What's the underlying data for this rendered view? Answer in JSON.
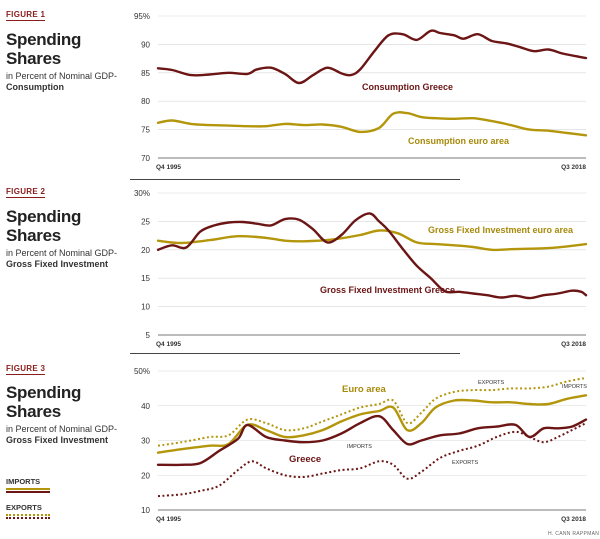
{
  "figures": [
    {
      "label": "FIGURE 1",
      "title": "Spending Shares",
      "subtitle_pre": "in Percent of Nominal GDP-",
      "subtitle_bold": "Consumption"
    },
    {
      "label": "FIGURE 2",
      "title": "Spending Shares",
      "subtitle_pre": "in Percent of Nominal GDP-",
      "subtitle_bold": "Gross Fixed Investment"
    },
    {
      "label": "FIGURE 3",
      "title": "Spending Shares",
      "subtitle_pre": "in Percent of Nominal GDP-",
      "subtitle_bold": "Gross Fixed Investment"
    }
  ],
  "legend": {
    "imports": "IMPORTS",
    "exports": "EXPORTS"
  },
  "credit": "H. CANN RAPPMAN",
  "colors": {
    "greece": "#6b1515",
    "euro": "#b3960c",
    "text_dark_red": "#6b1515",
    "text_gold": "#a88a0a"
  },
  "chart_data": [
    {
      "type": "line",
      "x_start_label": "Q4 1995",
      "x_end_label": "Q3 2018",
      "x_range": [
        1995.75,
        2018.5
      ],
      "ylim": [
        70,
        95
      ],
      "y_ticks": [
        "95%",
        "90",
        "85",
        "80",
        "75",
        "70"
      ],
      "y_tick_values": [
        95,
        90,
        85,
        80,
        75,
        70
      ],
      "series": [
        {
          "name": "Consumption Greece",
          "x": [
            1995.75,
            1996.5,
            1997.5,
            1998.5,
            1999.5,
            2000.5,
            2001,
            2001.75,
            2002.5,
            2003.25,
            2004,
            2004.75,
            2005.5,
            2006,
            2006.5,
            2007.25,
            2008,
            2008.75,
            2009.5,
            2010.25,
            2010.75,
            2011.5,
            2012,
            2012.75,
            2013.5,
            2014.25,
            2015,
            2015.75,
            2016.5,
            2017.25,
            2018,
            2018.5
          ],
          "values": [
            85.8,
            85.5,
            84.6,
            84.7,
            85.0,
            84.8,
            85.6,
            85.9,
            84.8,
            83.2,
            84.6,
            85.9,
            84.9,
            84.6,
            85.6,
            88.8,
            91.6,
            91.8,
            90.8,
            92.4,
            92.0,
            91.6,
            91.0,
            91.8,
            90.6,
            90.2,
            89.5,
            88.8,
            89.1,
            88.4,
            87.9,
            87.6
          ]
        },
        {
          "name": "Consumption euro area",
          "x": [
            1995.75,
            1996.5,
            1997.5,
            1998.5,
            1999.5,
            2000.5,
            2001.5,
            2002.5,
            2003.5,
            2004.5,
            2005.5,
            2006.5,
            2007.5,
            2008.25,
            2009,
            2009.75,
            2010.5,
            2011.5,
            2012.5,
            2013.5,
            2014.5,
            2015.5,
            2016.5,
            2017.5,
            2018.5
          ],
          "values": [
            76.2,
            76.6,
            76.0,
            75.8,
            75.7,
            75.6,
            75.6,
            76.0,
            75.8,
            75.9,
            75.5,
            74.6,
            75.3,
            77.8,
            77.9,
            77.2,
            77.0,
            76.9,
            77.0,
            76.5,
            75.8,
            75.0,
            74.8,
            74.4,
            74.0
          ]
        }
      ]
    },
    {
      "type": "line",
      "x_start_label": "Q4 1995",
      "x_end_label": "Q3 2018",
      "x_range": [
        1995.75,
        2018.5
      ],
      "ylim": [
        5,
        30
      ],
      "y_ticks": [
        "30%",
        "25",
        "20",
        "15",
        "10",
        "5"
      ],
      "y_tick_values": [
        30,
        25,
        20,
        15,
        10,
        5
      ],
      "series": [
        {
          "name": "Gross Fixed Investment euro area",
          "x": [
            1995.75,
            1997,
            1998.5,
            2000,
            2001.5,
            2002.5,
            2003.5,
            2005,
            2006.5,
            2007.5,
            2008.5,
            2009.5,
            2010.5,
            2011.5,
            2012.5,
            2013.5,
            2014.5,
            2015.5,
            2016.5,
            2017.5,
            2018.5
          ],
          "values": [
            21.6,
            21.2,
            21.7,
            22.4,
            22.1,
            21.6,
            21.5,
            21.8,
            22.6,
            23.4,
            22.9,
            21.3,
            21.0,
            20.8,
            20.5,
            20.0,
            20.1,
            20.2,
            20.3,
            20.6,
            21.0
          ]
        },
        {
          "name": "Gross Fixed Investment Greece",
          "x": [
            1995.75,
            1996.5,
            1997.25,
            1998,
            1998.75,
            1999.5,
            2000.25,
            2001,
            2001.75,
            2002.5,
            2003.25,
            2004,
            2004.75,
            2005.5,
            2006.25,
            2007,
            2007.5,
            2008,
            2008.75,
            2009.5,
            2010.25,
            2011,
            2011.75,
            2012.5,
            2013.25,
            2014,
            2014.75,
            2015.5,
            2016.25,
            2017,
            2017.75,
            2018.25,
            2018.5
          ],
          "values": [
            20.0,
            20.8,
            20.4,
            23.2,
            24.3,
            24.8,
            24.9,
            24.6,
            24.3,
            25.4,
            25.3,
            23.6,
            21.3,
            22.6,
            25.2,
            26.4,
            25.0,
            23.4,
            20.2,
            17.2,
            15.0,
            12.7,
            12.6,
            12.3,
            12.0,
            11.6,
            11.9,
            11.5,
            12.0,
            12.3,
            12.8,
            12.6,
            12.0
          ]
        }
      ]
    },
    {
      "type": "line",
      "x_start_label": "Q4 1995",
      "x_end_label": "Q3 2018",
      "x_range": [
        1995.75,
        2018.5
      ],
      "ylim": [
        10,
        50
      ],
      "y_ticks": [
        "50%",
        "40",
        "30",
        "20",
        "10"
      ],
      "y_tick_values": [
        50,
        40,
        30,
        20,
        10
      ],
      "series": [
        {
          "name": "Euro area",
          "series_label": "IMPORTS",
          "style": "solid",
          "color_key": "euro",
          "x": [
            1995.75,
            1997,
            1998.5,
            1999.5,
            2000.5,
            2001.5,
            2002.5,
            2003.5,
            2004.5,
            2005.5,
            2006.5,
            2007.5,
            2008.25,
            2009,
            2009.75,
            2010.5,
            2011.5,
            2012.5,
            2013.5,
            2014.5,
            2015.5,
            2016.5,
            2017.5,
            2018.5
          ],
          "values": [
            26.5,
            27.5,
            28.5,
            29.0,
            34.5,
            33.0,
            31.0,
            31.5,
            33.0,
            35.5,
            37.5,
            38.5,
            39.5,
            33.0,
            35.0,
            39.5,
            41.5,
            41.5,
            41.0,
            41.0,
            40.5,
            40.5,
            42.0,
            43.0
          ]
        },
        {
          "name": "Euro area",
          "series_label": "EXPORTS",
          "style": "dotted",
          "color_key": "euro",
          "x": [
            1995.75,
            1997,
            1998.5,
            1999.5,
            2000.5,
            2001.5,
            2002.5,
            2003.5,
            2004.5,
            2005.5,
            2006.5,
            2007.5,
            2008.25,
            2009,
            2009.75,
            2010.5,
            2011.5,
            2012.5,
            2013.5,
            2014.5,
            2015.5,
            2016.5,
            2017.5,
            2018.5
          ],
          "values": [
            28.5,
            29.5,
            31.0,
            31.5,
            36.0,
            35.0,
            33.0,
            33.5,
            35.5,
            37.5,
            39.5,
            40.5,
            41.5,
            35.0,
            38.0,
            42.0,
            44.0,
            44.5,
            44.5,
            45.0,
            45.0,
            45.5,
            47.0,
            48.0
          ]
        },
        {
          "name": "Greece",
          "series_label": "IMPORTS",
          "style": "solid",
          "color_key": "greece",
          "x": [
            1995.75,
            1997,
            1998,
            1999,
            2000,
            2000.5,
            2001.5,
            2002.5,
            2003.5,
            2004.5,
            2005.5,
            2006.5,
            2007.5,
            2008.25,
            2009,
            2009.75,
            2010.75,
            2011.75,
            2012.75,
            2013.75,
            2014.75,
            2015.5,
            2016.25,
            2017,
            2017.75,
            2018.5
          ],
          "values": [
            23.0,
            23.0,
            23.5,
            27.0,
            30.5,
            34.5,
            31.0,
            30.0,
            29.5,
            30.0,
            32.0,
            35.0,
            37.0,
            33.0,
            29.0,
            30.0,
            31.5,
            32.0,
            33.5,
            34.0,
            34.5,
            31.0,
            33.5,
            33.5,
            34.0,
            36.0
          ]
        },
        {
          "name": "Greece",
          "series_label": "EXPORTS",
          "style": "dotted",
          "color_key": "greece",
          "x": [
            1995.75,
            1997,
            1998,
            1999,
            2000,
            2000.75,
            2001.5,
            2002.5,
            2003.5,
            2004.5,
            2005.5,
            2006.5,
            2007.5,
            2008.25,
            2009,
            2009.75,
            2010.75,
            2011.75,
            2012.75,
            2013.75,
            2014.75,
            2015.5,
            2016.25,
            2017,
            2017.75,
            2018.5
          ],
          "values": [
            14.0,
            14.5,
            15.5,
            17.0,
            21.5,
            24.0,
            22.0,
            20.0,
            19.5,
            20.5,
            21.5,
            22.0,
            24.0,
            23.0,
            19.0,
            21.0,
            25.0,
            27.0,
            28.5,
            31.0,
            32.5,
            31.0,
            29.5,
            31.0,
            33.0,
            35.0
          ]
        }
      ],
      "annotations": [
        {
          "text": "Euro area",
          "color_key": "euro"
        },
        {
          "text": "Greece",
          "color_key": "greece"
        },
        {
          "text": "EXPORTS"
        },
        {
          "text": "IMPORTS"
        },
        {
          "text": "IMPORTS"
        },
        {
          "text": "EXPORTS"
        }
      ]
    }
  ]
}
